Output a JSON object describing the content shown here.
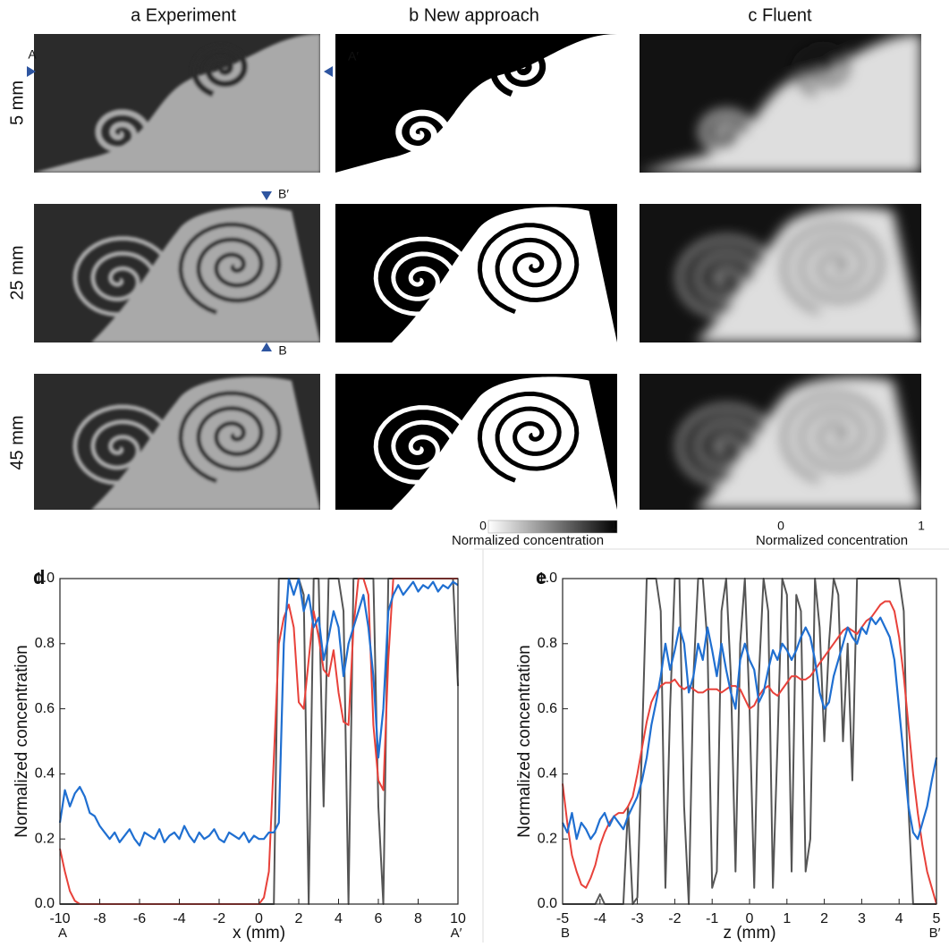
{
  "figure": {
    "columns": [
      "a Experiment",
      "b New approach",
      "c Fluent"
    ],
    "rows": [
      "5 mm",
      "25 mm",
      "45 mm"
    ],
    "markers": [
      "A",
      "A′",
      "B′",
      "B"
    ],
    "colorbars": [
      {
        "min": 0,
        "max": 1,
        "label": "Normalized concentration"
      },
      {
        "min": 0,
        "max": 1,
        "label": "Normalized concentration"
      }
    ]
  },
  "chart_data": [
    {
      "type": "line",
      "panel": "d",
      "x_label": "x (mm)",
      "y_label": "Normalized concentration",
      "start_label": "A",
      "end_label": "A′",
      "xlim": [
        -10,
        10
      ],
      "xticks": [
        -10,
        -8,
        -6,
        -4,
        -2,
        0,
        2,
        4,
        6,
        8,
        10
      ],
      "ylim": [
        0,
        1
      ],
      "yticks": [
        {
          "value": 0,
          "label": "0.0"
        },
        0.2,
        0.4,
        0.6,
        0.8,
        {
          "value": 1,
          "label": "1.0"
        }
      ],
      "x": [
        -10,
        -9.75,
        -9.5,
        -9.25,
        -9,
        -8.75,
        -8.5,
        -8.25,
        -8,
        -7.75,
        -7.5,
        -7.25,
        -7,
        -6.75,
        -6.5,
        -6.25,
        -6,
        -5.75,
        -5.5,
        -5.25,
        -5,
        -4.75,
        -4.5,
        -4.25,
        -4,
        -3.75,
        -3.5,
        -3.25,
        -3,
        -2.75,
        -2.5,
        -2.25,
        -2,
        -1.75,
        -1.5,
        -1.25,
        -1,
        -0.75,
        -0.5,
        -0.25,
        0,
        0.25,
        0.5,
        0.75,
        1,
        1.25,
        1.5,
        1.75,
        2,
        2.25,
        2.5,
        2.75,
        3,
        3.25,
        3.5,
        3.75,
        4,
        4.25,
        4.5,
        4.75,
        5,
        5.25,
        5.5,
        5.75,
        6,
        6.25,
        6.5,
        6.75,
        7,
        7.25,
        7.5,
        7.75,
        8,
        8.25,
        8.5,
        8.75,
        9,
        9.25,
        9.5,
        9.75,
        10
      ],
      "series": [
        {
          "color": "#555555",
          "values": [
            0,
            0,
            0,
            0,
            0,
            0,
            0,
            0,
            0,
            0,
            0,
            0,
            0,
            0,
            0,
            0,
            0,
            0,
            0,
            0,
            0,
            0,
            0,
            0,
            0,
            0,
            0,
            0,
            0,
            0,
            0,
            0,
            0,
            0,
            0,
            0,
            0,
            0,
            0,
            0,
            0,
            0,
            0,
            0,
            1,
            1,
            1,
            1,
            1,
            0.95,
            0,
            1,
            1,
            0.3,
            1,
            1,
            1,
            0.9,
            0,
            1,
            1,
            1,
            1,
            1,
            0.3,
            0,
            1,
            1,
            1,
            1,
            1,
            1,
            1,
            1,
            1,
            1,
            1,
            1,
            1,
            1,
            0.67
          ]
        },
        {
          "color": "#e8413a",
          "values": [
            0.17,
            0.1,
            0.04,
            0.01,
            0,
            0,
            0,
            0,
            0,
            0,
            0,
            0,
            0,
            0,
            0,
            0,
            0,
            0,
            0,
            0,
            0,
            0,
            0,
            0,
            0,
            0,
            0,
            0,
            0,
            0,
            0,
            0,
            0,
            0,
            0,
            0,
            0,
            0,
            0,
            0,
            0,
            0.02,
            0.1,
            0.45,
            0.8,
            0.88,
            0.92,
            0.85,
            0.62,
            0.6,
            0.75,
            0.9,
            0.82,
            0.72,
            0.7,
            0.78,
            0.65,
            0.56,
            0.55,
            0.85,
            1,
            1,
            0.95,
            0.55,
            0.38,
            0.35,
            0.75,
            1,
            1,
            1,
            1,
            1,
            1,
            1,
            1,
            1,
            1,
            1,
            1,
            1,
            1
          ]
        },
        {
          "color": "#1f6fd1",
          "values": [
            0.25,
            0.35,
            0.3,
            0.34,
            0.36,
            0.33,
            0.28,
            0.27,
            0.24,
            0.22,
            0.2,
            0.22,
            0.19,
            0.21,
            0.23,
            0.2,
            0.18,
            0.22,
            0.21,
            0.2,
            0.23,
            0.19,
            0.21,
            0.22,
            0.2,
            0.24,
            0.21,
            0.19,
            0.22,
            0.2,
            0.21,
            0.23,
            0.2,
            0.19,
            0.22,
            0.21,
            0.2,
            0.22,
            0.19,
            0.21,
            0.2,
            0.2,
            0.22,
            0.22,
            0.25,
            0.8,
            1,
            0.95,
            1,
            0.9,
            0.95,
            0.85,
            0.88,
            0.75,
            0.82,
            0.9,
            0.85,
            0.7,
            0.8,
            0.85,
            0.9,
            0.95,
            0.85,
            0.7,
            0.45,
            0.6,
            0.9,
            0.95,
            0.98,
            0.95,
            0.97,
            0.99,
            0.96,
            0.98,
            0.97,
            0.99,
            0.96,
            0.98,
            0.97,
            0.99,
            0.98
          ]
        }
      ]
    },
    {
      "type": "line",
      "panel": "e",
      "x_label": "z (mm)",
      "y_label": "Normalized concentration",
      "start_label": "B",
      "end_label": "B′",
      "xlim": [
        -5,
        5
      ],
      "xticks": [
        -5,
        -4,
        -3,
        -2,
        -1,
        0,
        1,
        2,
        3,
        4,
        5
      ],
      "ylim": [
        0,
        1
      ],
      "yticks": [
        {
          "value": 0,
          "label": "0.0"
        },
        0.2,
        0.4,
        0.6,
        0.8,
        {
          "value": 1,
          "label": "1.0"
        }
      ],
      "x": [
        -5,
        -4.875,
        -4.75,
        -4.625,
        -4.5,
        -4.375,
        -4.25,
        -4.125,
        -4,
        -3.875,
        -3.75,
        -3.625,
        -3.5,
        -3.375,
        -3.25,
        -3.125,
        -3,
        -2.875,
        -2.75,
        -2.625,
        -2.5,
        -2.375,
        -2.25,
        -2.125,
        -2,
        -1.875,
        -1.75,
        -1.625,
        -1.5,
        -1.375,
        -1.25,
        -1.125,
        -1,
        -0.875,
        -0.75,
        -0.625,
        -0.5,
        -0.375,
        -0.25,
        -0.125,
        0,
        0.125,
        0.25,
        0.375,
        0.5,
        0.625,
        0.75,
        0.875,
        1,
        1.125,
        1.25,
        1.375,
        1.5,
        1.625,
        1.75,
        1.875,
        2,
        2.125,
        2.25,
        2.375,
        2.5,
        2.625,
        2.75,
        2.875,
        3,
        3.125,
        3.25,
        3.375,
        3.5,
        3.625,
        3.75,
        3.875,
        4,
        4.125,
        4.25,
        4.375,
        4.5,
        4.625,
        4.75,
        4.875,
        5
      ],
      "series": [
        {
          "color": "#555555",
          "values": [
            0,
            0,
            0,
            0,
            0,
            0,
            0,
            0,
            0.03,
            0,
            0,
            0,
            0,
            0,
            0.3,
            0,
            0.02,
            0.5,
            1,
            1,
            1,
            0.9,
            0.05,
            0.6,
            1,
            1,
            0.3,
            0,
            0.7,
            1,
            1,
            0.8,
            0.05,
            0.1,
            0.9,
            1,
            0.7,
            0.1,
            0.8,
            1,
            0.6,
            0.05,
            0.7,
            1,
            0.9,
            0.05,
            0.5,
            1,
            0.95,
            0.1,
            0.95,
            0.9,
            0.1,
            0.2,
            1,
            0.85,
            0.5,
            0.8,
            1,
            0.95,
            0.5,
            0.8,
            0.38,
            1,
            1,
            1,
            1,
            1,
            1,
            1,
            1,
            1,
            1,
            0.9,
            0.3,
            0,
            0,
            0,
            0,
            0,
            0
          ]
        },
        {
          "color": "#e8413a",
          "values": [
            0.37,
            0.25,
            0.15,
            0.1,
            0.06,
            0.05,
            0.08,
            0.12,
            0.18,
            0.22,
            0.25,
            0.27,
            0.28,
            0.28,
            0.3,
            0.33,
            0.4,
            0.48,
            0.56,
            0.62,
            0.65,
            0.67,
            0.68,
            0.68,
            0.69,
            0.67,
            0.66,
            0.67,
            0.66,
            0.65,
            0.65,
            0.66,
            0.66,
            0.66,
            0.65,
            0.66,
            0.67,
            0.67,
            0.66,
            0.63,
            0.6,
            0.61,
            0.64,
            0.66,
            0.67,
            0.65,
            0.64,
            0.66,
            0.68,
            0.7,
            0.7,
            0.69,
            0.69,
            0.7,
            0.72,
            0.74,
            0.76,
            0.78,
            0.8,
            0.82,
            0.84,
            0.85,
            0.84,
            0.83,
            0.85,
            0.87,
            0.88,
            0.9,
            0.92,
            0.93,
            0.93,
            0.9,
            0.82,
            0.7,
            0.55,
            0.4,
            0.28,
            0.18,
            0.1,
            0.05,
            0
          ]
        },
        {
          "color": "#1f6fd1",
          "values": [
            0.25,
            0.22,
            0.28,
            0.2,
            0.25,
            0.23,
            0.2,
            0.22,
            0.26,
            0.28,
            0.24,
            0.27,
            0.25,
            0.23,
            0.27,
            0.3,
            0.33,
            0.38,
            0.45,
            0.55,
            0.62,
            0.7,
            0.8,
            0.72,
            0.78,
            0.85,
            0.8,
            0.65,
            0.7,
            0.8,
            0.75,
            0.85,
            0.78,
            0.7,
            0.8,
            0.72,
            0.65,
            0.6,
            0.75,
            0.8,
            0.75,
            0.72,
            0.62,
            0.65,
            0.72,
            0.78,
            0.75,
            0.8,
            0.78,
            0.75,
            0.78,
            0.82,
            0.85,
            0.82,
            0.75,
            0.65,
            0.6,
            0.62,
            0.7,
            0.75,
            0.8,
            0.85,
            0.82,
            0.8,
            0.85,
            0.83,
            0.88,
            0.86,
            0.88,
            0.85,
            0.82,
            0.75,
            0.6,
            0.45,
            0.3,
            0.22,
            0.2,
            0.25,
            0.3,
            0.38,
            0.45
          ]
        }
      ]
    }
  ]
}
